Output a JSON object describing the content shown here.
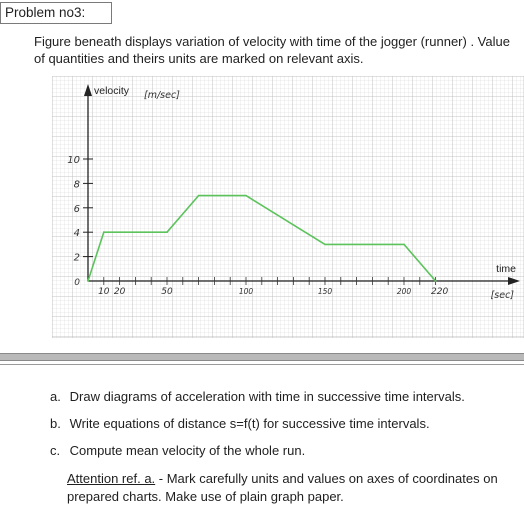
{
  "header": {
    "title": "Problem no3:"
  },
  "intro": "Figure beneath displays variation of velocity with time of the jogger (runner) . Value of quantities and theirs units are marked on relevant axis.",
  "figure": {
    "y_axis_label": "velocity",
    "y_unit": "[m/sec]",
    "x_axis_label": "time",
    "x_unit": "[sec]",
    "y_ticks": [
      "10",
      "8",
      "6",
      "4",
      "2",
      "0"
    ],
    "x_ticks": [
      "10",
      "20",
      "50",
      "100",
      "150",
      "200",
      "220"
    ],
    "line_color": "#5cc35c"
  },
  "chart_data": {
    "type": "line",
    "xlabel": "time [sec]",
    "ylabel": "velocity [m/sec]",
    "x": [
      0,
      10,
      50,
      70,
      100,
      150,
      200,
      220
    ],
    "y": [
      0,
      4,
      4,
      7,
      7,
      3,
      3,
      0
    ],
    "xlim": [
      0,
      230
    ],
    "ylim": [
      0,
      11
    ],
    "grid": true
  },
  "tasks": [
    {
      "marker": "a.",
      "text": "Draw diagrams of acceleration with time in successive time intervals."
    },
    {
      "marker": "b.",
      "text": "Write equations of distance s=f(t) for successive time intervals."
    },
    {
      "marker": "c.",
      "text": "Compute mean velocity of the whole run."
    }
  ],
  "attention": {
    "ref": "Attention ref. a.",
    "text": " - Mark carefully units and values on axes of coordinates on prepared charts. Make use of plain graph paper."
  }
}
